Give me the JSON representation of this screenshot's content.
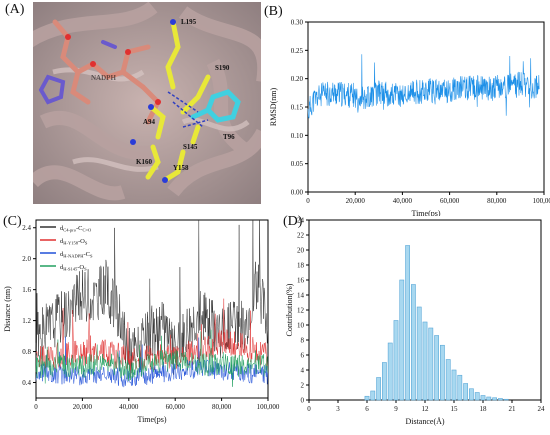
{
  "panels": {
    "A": {
      "label": "(A)"
    },
    "B": {
      "label": "(B)"
    },
    "C": {
      "label": "(C)"
    },
    "D": {
      "label": "(D)"
    }
  },
  "structure_labels": [
    "L195",
    "S190",
    "A94",
    "T96",
    "K160",
    "S145",
    "Y158",
    "NADPH"
  ],
  "chart_data": [
    {
      "panel": "B",
      "type": "line",
      "xlabel": "Time(ps)",
      "ylabel": "RMSD(nm)",
      "xlim": [
        0,
        100000
      ],
      "ylim": [
        0.0,
        0.3
      ],
      "xticks": [
        0,
        20000,
        40000,
        60000,
        80000,
        100000
      ],
      "xtick_labels": [
        "0",
        "20,000",
        "40,000",
        "60,000",
        "80,000",
        "100,000"
      ],
      "yticks": [
        0.0,
        0.05,
        0.1,
        0.15,
        0.2,
        0.25,
        0.3
      ],
      "ytick_labels": [
        "0.00",
        "0.05",
        "0.10",
        "0.15",
        "0.20",
        "0.25",
        "0.30"
      ],
      "color": "#1e90e8",
      "series": [
        {
          "x": [
            0,
            2000,
            5000,
            10000,
            15000,
            20000,
            25000,
            30000,
            35000,
            40000,
            45000,
            50000,
            55000,
            60000,
            65000,
            70000,
            75000,
            80000,
            85000,
            90000,
            95000,
            98000
          ],
          "values": [
            0.14,
            0.16,
            0.17,
            0.175,
            0.172,
            0.17,
            0.168,
            0.175,
            0.172,
            0.17,
            0.175,
            0.18,
            0.176,
            0.18,
            0.182,
            0.185,
            0.182,
            0.184,
            0.186,
            0.19,
            0.185,
            0.188
          ]
        }
      ]
    },
    {
      "panel": "C",
      "type": "line",
      "xlabel": "Time(ps)",
      "ylabel": "Distance (nm)",
      "xlim": [
        0,
        100000
      ],
      "ylim": [
        0.2,
        2.5
      ],
      "xticks": [
        0,
        20000,
        40000,
        60000,
        80000,
        100000
      ],
      "xtick_labels": [
        "0",
        "20,000",
        "40,000",
        "60,000",
        "80,000",
        "100,000"
      ],
      "yticks": [
        0.4,
        0.8,
        1.2,
        1.6,
        2.0,
        2.4
      ],
      "ytick_labels": [
        "0.4",
        "0.8",
        "1.2",
        "1.6",
        "2.0",
        "2.4"
      ],
      "legend_position": "top-left",
      "series": [
        {
          "name": "d<sub>C4-pro</sub>-C<sub>C=O</sub>",
          "color": "#333333",
          "x": [
            0,
            5000,
            10000,
            15000,
            20000,
            25000,
            30000,
            35000,
            40000,
            45000,
            50000,
            55000,
            60000,
            65000,
            70000,
            75000,
            80000,
            85000,
            90000,
            95000,
            100000
          ],
          "values": [
            0.95,
            1.1,
            1.25,
            1.35,
            1.55,
            1.5,
            1.65,
            1.3,
            0.8,
            0.85,
            1.05,
            1.1,
            0.8,
            1.1,
            1.3,
            1.2,
            1.05,
            1.2,
            1.1,
            1.7,
            1.15
          ]
        },
        {
          "name": "d<sub>H-Y158</sub>-O<sub>S</sub>",
          "color": "#e03030",
          "x": [
            0,
            10000,
            20000,
            30000,
            40000,
            50000,
            60000,
            70000,
            80000,
            90000,
            100000
          ],
          "values": [
            0.7,
            0.75,
            0.78,
            0.8,
            0.7,
            0.72,
            0.75,
            0.8,
            0.95,
            0.85,
            0.75
          ]
        },
        {
          "name": "d<sub>H-NADPH</sub>-C<sub>S</sub>",
          "color": "#2050d8",
          "x": [
            0,
            10000,
            20000,
            30000,
            40000,
            50000,
            60000,
            70000,
            80000,
            90000,
            100000
          ],
          "values": [
            0.55,
            0.5,
            0.48,
            0.52,
            0.45,
            0.5,
            0.55,
            0.58,
            0.55,
            0.52,
            0.5
          ]
        },
        {
          "name": "d<sub>H-S145</sub>-O<sub>S</sub>",
          "color": "#22a060",
          "x": [
            0,
            10000,
            20000,
            30000,
            40000,
            50000,
            60000,
            70000,
            80000,
            90000,
            100000
          ],
          "values": [
            0.6,
            0.62,
            0.6,
            0.65,
            0.55,
            0.65,
            0.68,
            0.62,
            0.65,
            0.6,
            0.62
          ]
        }
      ]
    },
    {
      "panel": "D",
      "type": "bar",
      "xlabel": "Distance(Å)",
      "ylabel": "Contribution(%)",
      "xlim": [
        0,
        24
      ],
      "ylim": [
        0,
        24
      ],
      "xticks": [
        0,
        3,
        6,
        9,
        12,
        15,
        18,
        21,
        24
      ],
      "xtick_labels": [
        "0",
        "3",
        "6",
        "9",
        "12",
        "15",
        "18",
        "21",
        "24"
      ],
      "yticks": [
        0,
        2,
        4,
        6,
        8,
        10,
        12,
        14,
        16,
        18,
        20,
        22,
        24
      ],
      "ytick_labels": [
        "0",
        "2",
        "4",
        "6",
        "8",
        "10",
        "12",
        "14",
        "16",
        "18",
        "20",
        "22",
        "24"
      ],
      "color": "#a8d8f0",
      "x": [
        6.0,
        6.6,
        7.2,
        7.8,
        8.4,
        9.0,
        9.6,
        10.2,
        10.8,
        11.4,
        12.0,
        12.6,
        13.2,
        13.8,
        14.4,
        15.0,
        15.6,
        16.2,
        16.8,
        17.4,
        18.0,
        18.6,
        19.2,
        19.8,
        20.4
      ],
      "values": [
        0.5,
        1.2,
        3.0,
        5.0,
        7.6,
        10.6,
        16.0,
        20.6,
        15.4,
        12.4,
        10.4,
        9.6,
        8.6,
        7.3,
        5.4,
        4.0,
        3.3,
        2.2,
        1.5,
        1.0,
        0.6,
        0.4,
        0.3,
        0.2,
        0.1
      ]
    }
  ]
}
